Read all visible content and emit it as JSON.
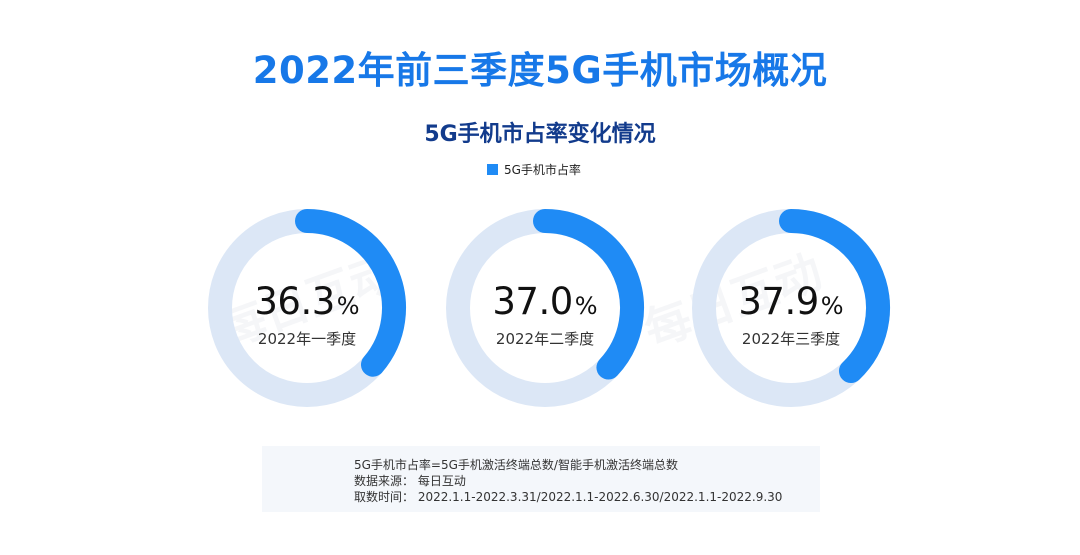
{
  "header": {
    "main_title": "2022年前三季度5G手机市场概况",
    "sub_title": "5G手机市占率变化情况"
  },
  "legend": {
    "label": "5G手机市占率",
    "color": "#1f8bf5"
  },
  "watermark": {
    "text": "每日互动"
  },
  "chart_data": {
    "type": "pie",
    "title": "5G手机市占率变化情况",
    "series_name": "5G手机市占率",
    "unit": "%",
    "items": [
      {
        "category": "2022年一季度",
        "value": 36.3,
        "value_label": "36.3"
      },
      {
        "category": "2022年二季度",
        "value": 37.0,
        "value_label": "37.0"
      },
      {
        "category": "2022年三季度",
        "value": 37.9,
        "value_label": "37.9"
      }
    ],
    "colors": {
      "filled": "#1f8bf5",
      "track": "#dce7f6"
    }
  },
  "notes": {
    "line1": "5G手机市占率=5G手机激活终端总数/智能手机激活终端总数",
    "line2": "数据来源：  每日互动",
    "line3": "取数时间：  2022.1.1-2022.3.31/2022.1.1-2022.6.30/2022.1.1-2022.9.30"
  }
}
